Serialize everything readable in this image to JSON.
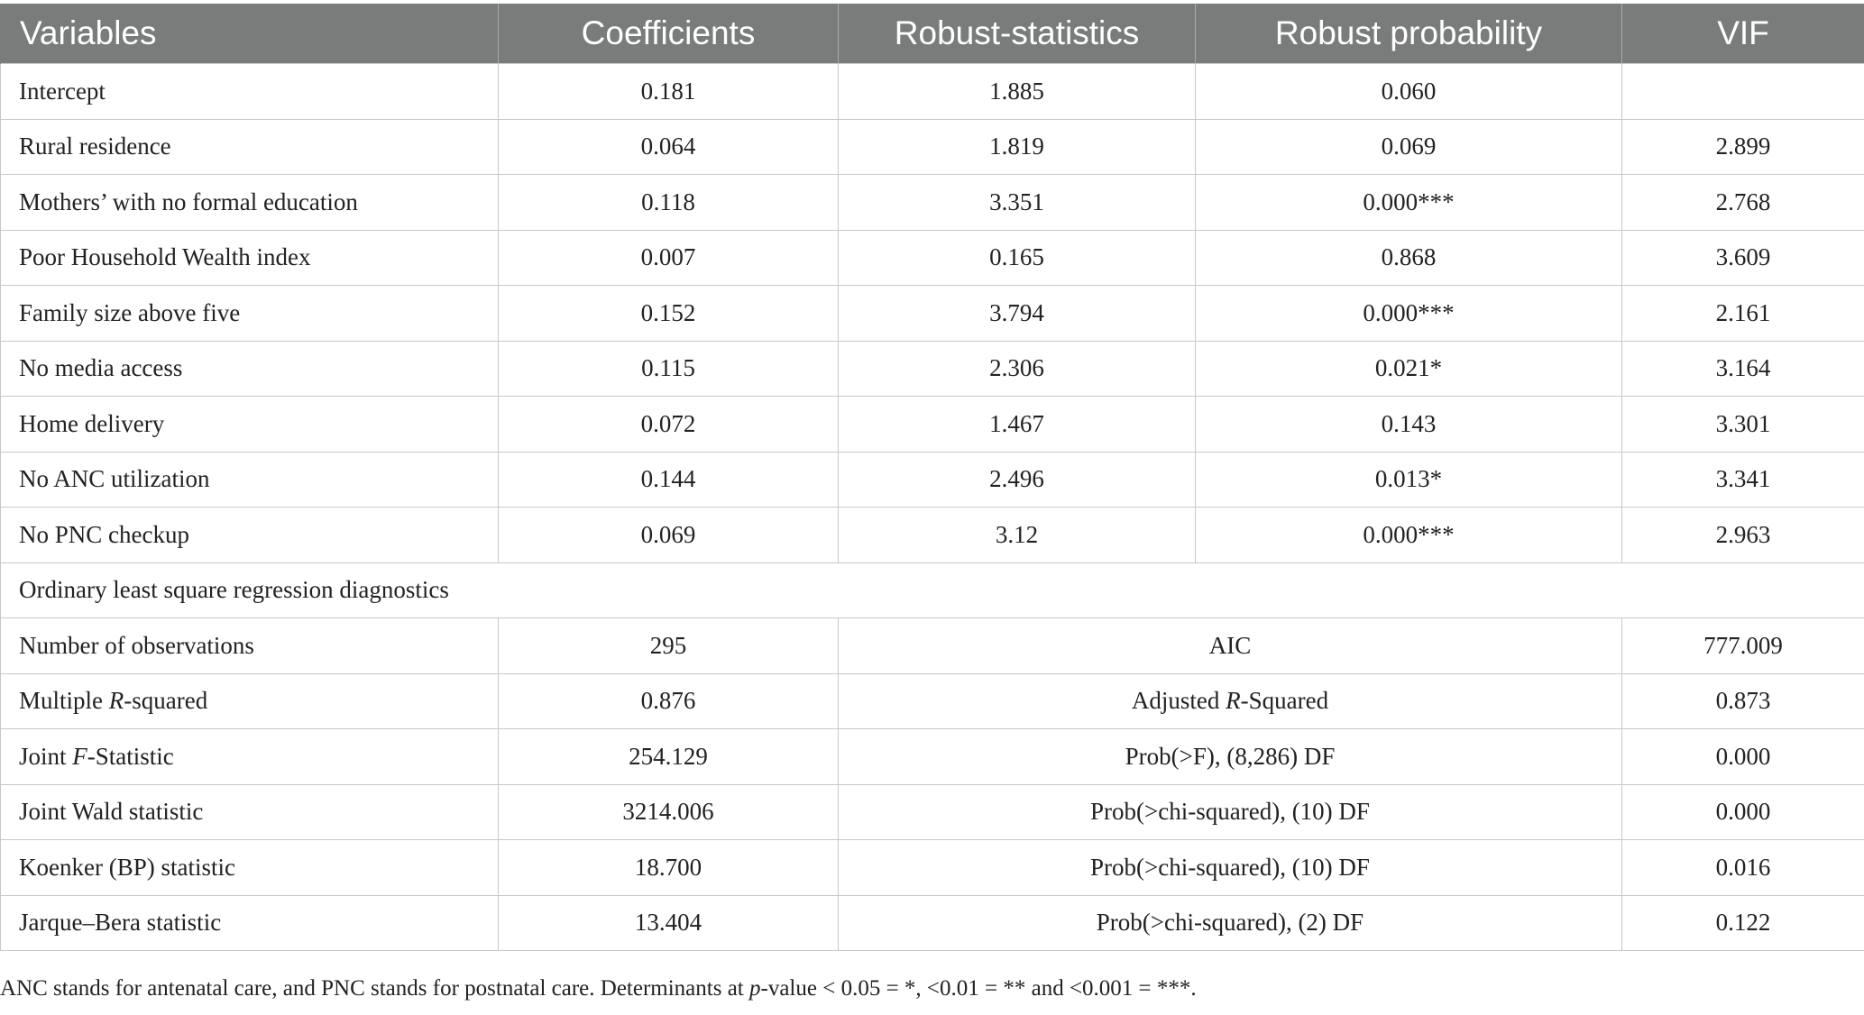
{
  "header": [
    "Variables",
    "Coefficients",
    "Robust-statistics",
    "Robust probability",
    "VIF"
  ],
  "rows": [
    {
      "variable": "Intercept",
      "coef": "0.181",
      "stat": "1.885",
      "prob": "0.060",
      "vif": ""
    },
    {
      "variable": "Rural residence",
      "coef": "0.064",
      "stat": "1.819",
      "prob": "0.069",
      "vif": "2.899"
    },
    {
      "variable": "Mothers’ with no formal education",
      "coef": "0.118",
      "stat": "3.351",
      "prob": "0.000***",
      "vif": "2.768"
    },
    {
      "variable": "Poor Household Wealth index",
      "coef": "0.007",
      "stat": "0.165",
      "prob": "0.868",
      "vif": "3.609"
    },
    {
      "variable": "Family size above five",
      "coef": "0.152",
      "stat": "3.794",
      "prob": "0.000***",
      "vif": "2.161"
    },
    {
      "variable": "No media access",
      "coef": "0.115",
      "stat": "2.306",
      "prob": "0.021*",
      "vif": "3.164"
    },
    {
      "variable": "Home delivery",
      "coef": "0.072",
      "stat": "1.467",
      "prob": "0.143",
      "vif": "3.301"
    },
    {
      "variable": "No ANC utilization",
      "coef": "0.144",
      "stat": "2.496",
      "prob": "0.013*",
      "vif": "3.341"
    },
    {
      "variable": "No PNC checkup",
      "coef": "0.069",
      "stat": "3.12",
      "prob": "0.000***",
      "vif": "2.963"
    }
  ],
  "diagnostics_title": "Ordinary least square regression diagnostics",
  "diagnostics": [
    {
      "label_pre": "Number of observations",
      "label_it": "",
      "label_post": "",
      "value": "295",
      "test_pre": "AIC",
      "test_it": "",
      "test_post": "",
      "test_value": "777.009"
    },
    {
      "label_pre": "Multiple ",
      "label_it": "R",
      "label_post": "-squared",
      "value": "0.876",
      "test_pre": "Adjusted ",
      "test_it": "R",
      "test_post": "-Squared",
      "test_value": "0.873"
    },
    {
      "label_pre": "Joint ",
      "label_it": "F",
      "label_post": "-Statistic",
      "value": "254.129",
      "test_pre": "Prob(>F), (8,286) DF",
      "test_it": "",
      "test_post": "",
      "test_value": "0.000"
    },
    {
      "label_pre": "Joint Wald statistic",
      "label_it": "",
      "label_post": "",
      "value": "3214.006",
      "test_pre": "Prob(>chi-squared), (10) DF",
      "test_it": "",
      "test_post": "",
      "test_value": "0.000"
    },
    {
      "label_pre": "Koenker (BP) statistic",
      "label_it": "",
      "label_post": "",
      "value": "18.700",
      "test_pre": "Prob(>chi-squared), (10) DF",
      "test_it": "",
      "test_post": "",
      "test_value": "0.016"
    },
    {
      "label_pre": "Jarque–Bera statistic",
      "label_it": "",
      "label_post": "",
      "value": "13.404",
      "test_pre": "Prob(>chi-squared), (2) DF",
      "test_it": "",
      "test_post": "",
      "test_value": "0.122"
    }
  ],
  "footnote": {
    "pre": "ANC stands for antenatal care, and PNC stands for postnatal care. Determinants at ",
    "italic": "p",
    "post": "-value < 0.05 = *, <0.01 = ** and <0.001 = ***."
  }
}
